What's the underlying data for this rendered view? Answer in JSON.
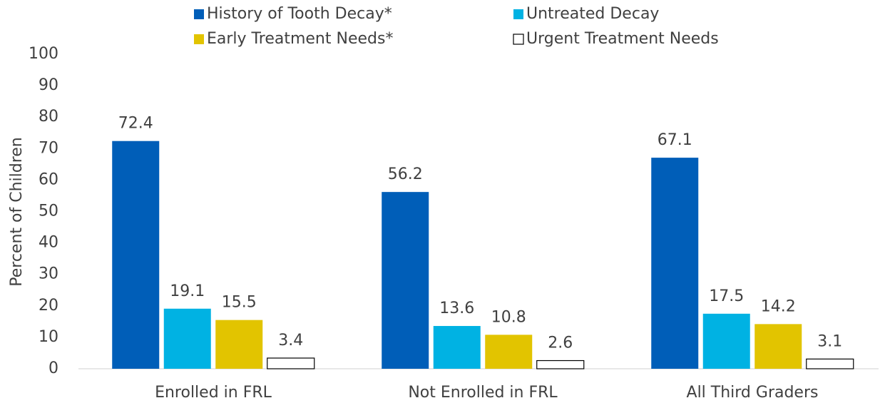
{
  "chart_data": {
    "type": "bar",
    "y_label": "Percent of Children",
    "categories": [
      "Enrolled in FRL",
      "Not Enrolled in FRL",
      "All Third Graders"
    ],
    "series": [
      {
        "name": "History of Tooth Decay*",
        "color": "#005EB8",
        "values": [
          72.4,
          56.2,
          67.1
        ]
      },
      {
        "name": "Untreated Decay",
        "color": "#00B2E3",
        "values": [
          19.1,
          13.6,
          17.5
        ]
      },
      {
        "name": "Early Treatment Needs*",
        "color": "#E2C400",
        "values": [
          15.5,
          10.8,
          14.2
        ]
      },
      {
        "name": "Urgent Treatment Needs",
        "color": "#FFFFFF",
        "values": [
          3.4,
          2.6,
          3.1
        ]
      }
    ],
    "ylim": [
      0,
      100
    ],
    "yticks": [
      0,
      10,
      20,
      30,
      40,
      50,
      60,
      70,
      80,
      90,
      100
    ],
    "grid": false
  }
}
